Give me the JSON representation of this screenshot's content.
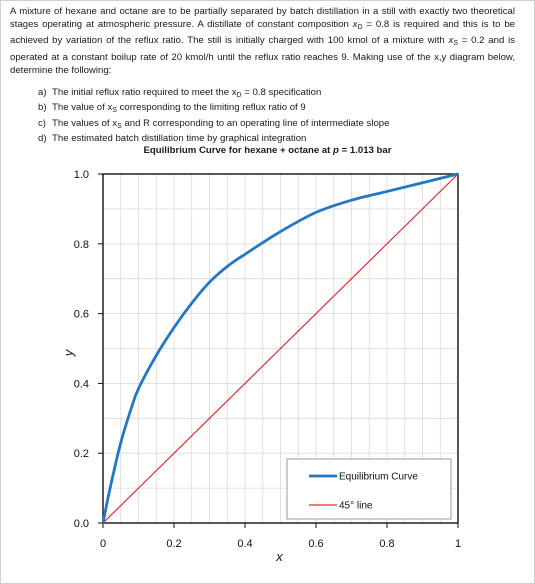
{
  "problem": {
    "intro_1": "A mixture of hexane and octane are to be partially separated by batch distillation in a still with exactly two theoretical stages operating at atmospheric pressure. A distillate of constant composition ",
    "xD_sym": "x",
    "xD_sub": "D",
    "intro_2": " = 0.8 is required and this is to be achieved by variation of the reflux ratio. The still is initially charged with 100 kmol of a mixture with ",
    "xS_sym": "x",
    "xS_sub": "S",
    "intro_3": " = 0.2 and is operated at a constant boilup rate of 20 kmol/h until the reflux ratio reaches 9. Making use of the x,y diagram below, determine the following:"
  },
  "questions": [
    {
      "letter": "a)",
      "pre": "The initial reflux ratio required to meet the x",
      "sub": "D",
      "post": " = 0.8 specification"
    },
    {
      "letter": "b)",
      "pre": "The value of x",
      "sub": "S",
      "post": " corresponding to the limiting reflux ratio of 9"
    },
    {
      "letter": "c)",
      "pre": "The values of x",
      "sub": "S",
      "post": " and R corresponding to an operating line of intermediate slope"
    },
    {
      "letter": "d)",
      "pre": "The estimated batch distillation time by graphical integration",
      "sub": "",
      "post": ""
    }
  ],
  "chart_title": {
    "pre": "Equilibrium Curve for hexane + octane at ",
    "sym": "p",
    "post": " = 1.013 bar"
  },
  "chart_data": {
    "type": "line",
    "title": "Equilibrium Curve for hexane + octane at p = 1.013 bar",
    "xlabel": "x",
    "ylabel": "y",
    "xlim": [
      0,
      1
    ],
    "ylim": [
      0,
      1
    ],
    "x_tick_labels": [
      "0",
      "0.2",
      "0.4",
      "0.6",
      "0.8",
      "1"
    ],
    "y_tick_labels": [
      "0.0",
      "0.2",
      "0.4",
      "0.6",
      "0.8",
      "1.0"
    ],
    "grid": true,
    "legend_position": "bottom-right",
    "series": [
      {
        "name": "Equilibrium Curve",
        "color": "#2377c3",
        "x": [
          0,
          0.02,
          0.05,
          0.08,
          0.1,
          0.15,
          0.2,
          0.25,
          0.3,
          0.35,
          0.4,
          0.5,
          0.6,
          0.7,
          0.8,
          0.9,
          1.0
        ],
        "y": [
          0,
          0.1,
          0.23,
          0.33,
          0.385,
          0.48,
          0.56,
          0.63,
          0.69,
          0.735,
          0.77,
          0.835,
          0.89,
          0.925,
          0.95,
          0.975,
          1.0
        ]
      },
      {
        "name": "45° line",
        "color": "#e8282a",
        "x": [
          0,
          1
        ],
        "y": [
          0,
          1
        ]
      }
    ]
  }
}
